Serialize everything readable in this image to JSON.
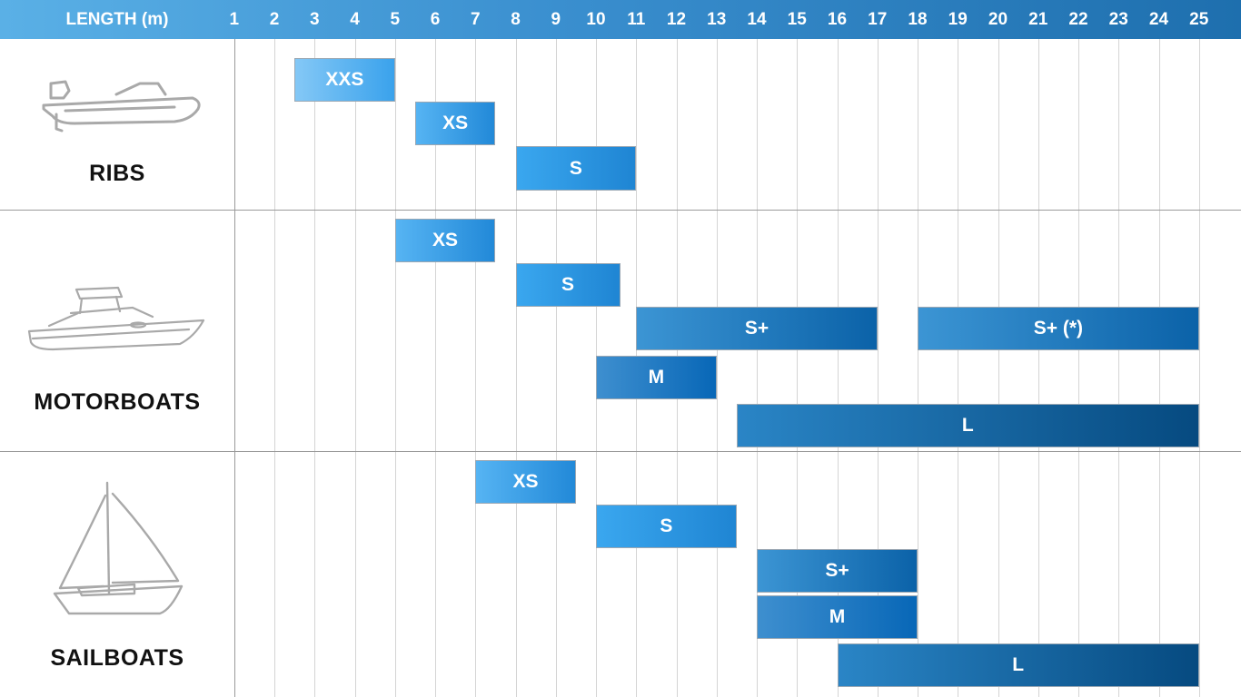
{
  "header": {
    "axis_label": "LENGTH (m)"
  },
  "chart_data": {
    "type": "bar",
    "orientation": "horizontal-range",
    "x_ticks": [
      "1",
      "2",
      "3",
      "4",
      "5",
      "6",
      "7",
      "8",
      "9",
      "10",
      "11",
      "12",
      "13",
      "14",
      "15",
      "16",
      "17",
      "18",
      "19",
      "20",
      "21",
      "22",
      "23",
      "24",
      "25"
    ],
    "categories": [
      {
        "name": "RIBS",
        "icon": "rib-boat-icon",
        "bars": [
          {
            "label": "XXS",
            "from": 2.5,
            "to": 5
          },
          {
            "label": "XS",
            "from": 5.5,
            "to": 7.5
          },
          {
            "label": "S",
            "from": 8,
            "to": 11
          }
        ]
      },
      {
        "name": "MOTORBOATS",
        "icon": "motorboat-icon",
        "bars": [
          {
            "label": "XS",
            "from": 5,
            "to": 7.5
          },
          {
            "label": "S",
            "from": 8,
            "to": 10.6
          },
          {
            "label": "S+",
            "from": 11,
            "to": 17
          },
          {
            "label": "S+ (*)",
            "from": 18,
            "to": 25
          },
          {
            "label": "M",
            "from": 10,
            "to": 13
          },
          {
            "label": "L",
            "from": 13.5,
            "to": 25
          }
        ]
      },
      {
        "name": "SAILBOATS",
        "icon": "sailboat-icon",
        "bars": [
          {
            "label": "XS",
            "from": 7,
            "to": 9.5
          },
          {
            "label": "S",
            "from": 10,
            "to": 13.5
          },
          {
            "label": "S+",
            "from": 14,
            "to": 18
          },
          {
            "label": "M",
            "from": 14,
            "to": 18
          },
          {
            "label": "L",
            "from": 16,
            "to": 25
          }
        ]
      }
    ]
  }
}
